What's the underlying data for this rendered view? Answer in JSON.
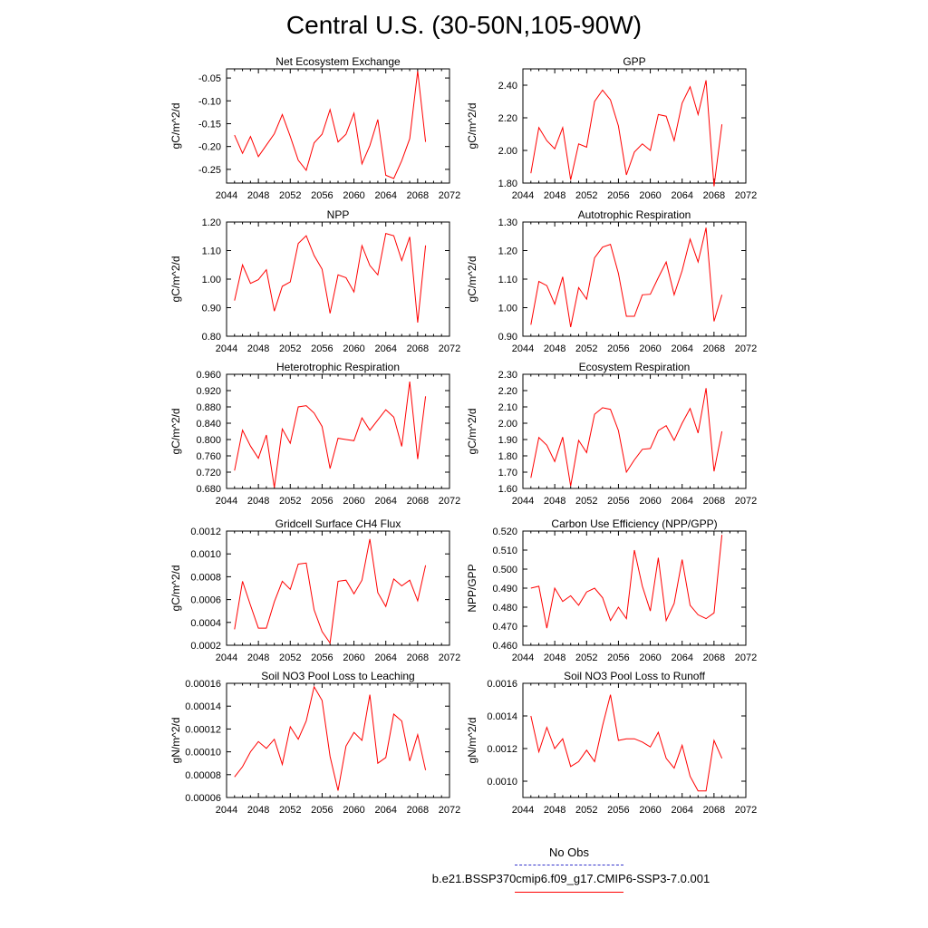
{
  "title": "Central U.S. (30-50N,105-90W)",
  "legend": {
    "obs_label": "No Obs",
    "obs_color": "#3333cc",
    "run_label": "b.e21.BSSP370cmip6.f09_g17.CMIP6-SSP3-7.0.001",
    "run_color": "#ff0000"
  },
  "chart_data": [
    {
      "type": "line",
      "title": "Net Ecosystem Exchange",
      "ylabel": "gC/m^2/d",
      "xlim": [
        2044,
        2072
      ],
      "xticks": [
        "2044",
        "2048",
        "2052",
        "2056",
        "2060",
        "2064",
        "2068",
        "2072"
      ],
      "ylim": [
        -0.28,
        -0.03
      ],
      "yticks": [
        "-0.05",
        "-0.10",
        "-0.15",
        "-0.20",
        "-0.25"
      ],
      "series": [
        {
          "x": [
            2045,
            2046,
            2047,
            2048,
            2049,
            2050,
            2051,
            2052,
            2053,
            2054,
            2055,
            2056,
            2057,
            2058,
            2059,
            2060,
            2061,
            2062,
            2063,
            2064,
            2065,
            2066,
            2067,
            2068,
            2069
          ],
          "values": [
            -0.175,
            -0.215,
            -0.178,
            -0.222,
            -0.197,
            -0.172,
            -0.13,
            -0.178,
            -0.23,
            -0.252,
            -0.192,
            -0.173,
            -0.119,
            -0.19,
            -0.173,
            -0.127,
            -0.238,
            -0.198,
            -0.141,
            -0.263,
            -0.27,
            -0.231,
            -0.183,
            -0.035,
            -0.19
          ]
        }
      ]
    },
    {
      "type": "line",
      "title": "GPP",
      "ylabel": "gC/m^2/d",
      "xlim": [
        2044,
        2072
      ],
      "xticks": [
        "2044",
        "2048",
        "2052",
        "2056",
        "2060",
        "2064",
        "2068",
        "2072"
      ],
      "ylim": [
        1.8,
        2.5
      ],
      "yticks": [
        "1.80",
        "2.00",
        "2.20",
        "2.40"
      ],
      "series": [
        {
          "x": [
            2045,
            2046,
            2047,
            2048,
            2049,
            2050,
            2051,
            2052,
            2053,
            2054,
            2055,
            2056,
            2057,
            2058,
            2059,
            2060,
            2061,
            2062,
            2063,
            2064,
            2065,
            2066,
            2067,
            2068,
            2069
          ],
          "values": [
            1.86,
            2.14,
            2.06,
            2.01,
            2.14,
            1.82,
            2.04,
            2.02,
            2.3,
            2.37,
            2.31,
            2.15,
            1.85,
            1.99,
            2.04,
            2.0,
            2.22,
            2.21,
            2.06,
            2.29,
            2.39,
            2.22,
            2.43,
            1.78,
            2.16
          ]
        }
      ]
    },
    {
      "type": "line",
      "title": "NPP",
      "ylabel": "gC/m^2/d",
      "xlim": [
        2044,
        2072
      ],
      "xticks": [
        "2044",
        "2048",
        "2052",
        "2056",
        "2060",
        "2064",
        "2068",
        "2072"
      ],
      "ylim": [
        0.8,
        1.2
      ],
      "yticks": [
        "0.80",
        "0.90",
        "1.00",
        "1.10",
        "1.20"
      ],
      "series": [
        {
          "x": [
            2045,
            2046,
            2047,
            2048,
            2049,
            2050,
            2051,
            2052,
            2053,
            2054,
            2055,
            2056,
            2057,
            2058,
            2059,
            2060,
            2061,
            2062,
            2063,
            2064,
            2065,
            2066,
            2067,
            2068,
            2069
          ],
          "values": [
            0.925,
            1.05,
            0.985,
            0.998,
            1.033,
            0.888,
            0.975,
            0.99,
            1.125,
            1.152,
            1.083,
            1.035,
            0.88,
            1.015,
            1.005,
            0.955,
            1.117,
            1.048,
            1.015,
            1.16,
            1.152,
            1.065,
            1.148,
            0.848,
            1.118
          ]
        }
      ]
    },
    {
      "type": "line",
      "title": "Autotrophic Respiration",
      "ylabel": "gC/m^2/d",
      "xlim": [
        2044,
        2072
      ],
      "xticks": [
        "2044",
        "2048",
        "2052",
        "2056",
        "2060",
        "2064",
        "2068",
        "2072"
      ],
      "ylim": [
        0.9,
        1.3
      ],
      "yticks": [
        "0.90",
        "1.00",
        "1.10",
        "1.20",
        "1.30"
      ],
      "series": [
        {
          "x": [
            2045,
            2046,
            2047,
            2048,
            2049,
            2050,
            2051,
            2052,
            2053,
            2054,
            2055,
            2056,
            2057,
            2058,
            2059,
            2060,
            2061,
            2062,
            2063,
            2064,
            2065,
            2066,
            2067,
            2068,
            2069
          ],
          "values": [
            0.94,
            1.092,
            1.077,
            1.012,
            1.108,
            0.932,
            1.07,
            1.03,
            1.175,
            1.212,
            1.222,
            1.12,
            0.97,
            0.97,
            1.045,
            1.047,
            1.105,
            1.16,
            1.045,
            1.13,
            1.24,
            1.16,
            1.28,
            0.952,
            1.045
          ]
        }
      ]
    },
    {
      "type": "line",
      "title": "Heterotrophic Respiration",
      "ylabel": "gC/m^2/d",
      "xlim": [
        2044,
        2072
      ],
      "xticks": [
        "2044",
        "2048",
        "2052",
        "2056",
        "2060",
        "2064",
        "2068",
        "2072"
      ],
      "ylim": [
        0.68,
        0.96
      ],
      "yticks": [
        "0.680",
        "0.720",
        "0.760",
        "0.800",
        "0.840",
        "0.880",
        "0.920",
        "0.960"
      ],
      "series": [
        {
          "x": [
            2045,
            2046,
            2047,
            2048,
            2049,
            2050,
            2051,
            2052,
            2053,
            2054,
            2055,
            2056,
            2057,
            2058,
            2059,
            2060,
            2061,
            2062,
            2063,
            2064,
            2065,
            2066,
            2067,
            2068,
            2069
          ],
          "values": [
            0.724,
            0.823,
            0.784,
            0.754,
            0.811,
            0.682,
            0.826,
            0.791,
            0.88,
            0.883,
            0.865,
            0.832,
            0.729,
            0.803,
            0.8,
            0.797,
            0.853,
            0.823,
            0.848,
            0.873,
            0.855,
            0.783,
            0.942,
            0.752,
            0.906
          ]
        }
      ]
    },
    {
      "type": "line",
      "title": "Ecosystem Respiration",
      "ylabel": "gC/m^2/d",
      "xlim": [
        2044,
        2072
      ],
      "xticks": [
        "2044",
        "2048",
        "2052",
        "2056",
        "2060",
        "2064",
        "2068",
        "2072"
      ],
      "ylim": [
        1.6,
        2.3
      ],
      "yticks": [
        "1.60",
        "1.70",
        "1.80",
        "1.90",
        "2.00",
        "2.10",
        "2.20",
        "2.30"
      ],
      "series": [
        {
          "x": [
            2045,
            2046,
            2047,
            2048,
            2049,
            2050,
            2051,
            2052,
            2053,
            2054,
            2055,
            2056,
            2057,
            2058,
            2059,
            2060,
            2061,
            2062,
            2063,
            2064,
            2065,
            2066,
            2067,
            2068,
            2069
          ],
          "values": [
            1.665,
            1.912,
            1.865,
            1.765,
            1.915,
            1.615,
            1.895,
            1.82,
            2.055,
            2.095,
            2.085,
            1.955,
            1.7,
            1.775,
            1.84,
            1.845,
            1.955,
            1.985,
            1.895,
            2.0,
            2.09,
            1.94,
            2.215,
            1.705,
            1.95
          ]
        }
      ]
    },
    {
      "type": "line",
      "title": "Gridcell Surface CH4 Flux",
      "ylabel": "gC/m^2/d",
      "xlim": [
        2044,
        2072
      ],
      "xticks": [
        "2044",
        "2048",
        "2052",
        "2056",
        "2060",
        "2064",
        "2068",
        "2072"
      ],
      "ylim": [
        0.0002,
        0.0012
      ],
      "yticks": [
        "0.0002",
        "0.0004",
        "0.0006",
        "0.0008",
        "0.0010",
        "0.0012"
      ],
      "series": [
        {
          "x": [
            2045,
            2046,
            2047,
            2048,
            2049,
            2050,
            2051,
            2052,
            2053,
            2054,
            2055,
            2056,
            2057,
            2058,
            2059,
            2060,
            2061,
            2062,
            2063,
            2064,
            2065,
            2066,
            2067,
            2068,
            2069
          ],
          "values": [
            0.00034,
            0.00076,
            0.00055,
            0.00035,
            0.00035,
            0.00058,
            0.00076,
            0.00069,
            0.00091,
            0.00092,
            0.00051,
            0.00032,
            0.00022,
            0.00076,
            0.00077,
            0.00065,
            0.00077,
            0.00113,
            0.00066,
            0.00054,
            0.00078,
            0.00072,
            0.00077,
            0.00059,
            0.0009
          ]
        }
      ]
    },
    {
      "type": "line",
      "title": "Carbon Use Efficiency (NPP/GPP)",
      "ylabel": "NPP/GPP",
      "xlim": [
        2044,
        2072
      ],
      "xticks": [
        "2044",
        "2048",
        "2052",
        "2056",
        "2060",
        "2064",
        "2068",
        "2072"
      ],
      "ylim": [
        0.46,
        0.52
      ],
      "yticks": [
        "0.460",
        "0.470",
        "0.480",
        "0.490",
        "0.500",
        "0.510",
        "0.520"
      ],
      "series": [
        {
          "x": [
            2045,
            2046,
            2047,
            2048,
            2049,
            2050,
            2051,
            2052,
            2053,
            2054,
            2055,
            2056,
            2057,
            2058,
            2059,
            2060,
            2061,
            2062,
            2063,
            2064,
            2065,
            2066,
            2067,
            2068,
            2069
          ],
          "values": [
            0.49,
            0.491,
            0.469,
            0.49,
            0.483,
            0.486,
            0.481,
            0.488,
            0.49,
            0.485,
            0.473,
            0.48,
            0.474,
            0.51,
            0.491,
            0.478,
            0.506,
            0.473,
            0.482,
            0.505,
            0.481,
            0.476,
            0.474,
            0.477,
            0.518
          ]
        }
      ]
    },
    {
      "type": "line",
      "title": "Soil NO3 Pool Loss to Leaching",
      "ylabel": "gN/m^2/d",
      "xlim": [
        2044,
        2072
      ],
      "xticks": [
        "2044",
        "2048",
        "2052",
        "2056",
        "2060",
        "2064",
        "2068",
        "2072"
      ],
      "ylim": [
        6e-05,
        0.00016
      ],
      "yticks": [
        "0.00006",
        "0.00008",
        "0.00010",
        "0.00012",
        "0.00014",
        "0.00016"
      ],
      "series": [
        {
          "x": [
            2045,
            2046,
            2047,
            2048,
            2049,
            2050,
            2051,
            2052,
            2053,
            2054,
            2055,
            2056,
            2057,
            2058,
            2059,
            2060,
            2061,
            2062,
            2063,
            2064,
            2065,
            2066,
            2067,
            2068,
            2069
          ],
          "values": [
            7.8e-05,
            8.7e-05,
            0.0001,
            0.000109,
            0.000103,
            0.000111,
            8.9e-05,
            0.000122,
            0.000111,
            0.000127,
            0.000157,
            0.000145,
            9.6e-05,
            6.6e-05,
            0.000105,
            0.000117,
            0.00011,
            0.00015,
            9e-05,
            9.5e-05,
            0.000133,
            0.000127,
            9.2e-05,
            0.000115,
            8.4e-05
          ]
        }
      ]
    },
    {
      "type": "line",
      "title": "Soil NO3 Pool Loss to Runoff",
      "ylabel": "gN/m^2/d",
      "xlim": [
        2044,
        2072
      ],
      "xticks": [
        "2044",
        "2048",
        "2052",
        "2056",
        "2060",
        "2064",
        "2068",
        "2072"
      ],
      "ylim": [
        0.0009,
        0.0016
      ],
      "yticks": [
        "0.0010",
        "0.0012",
        "0.0014",
        "0.0016"
      ],
      "series": [
        {
          "x": [
            2045,
            2046,
            2047,
            2048,
            2049,
            2050,
            2051,
            2052,
            2053,
            2054,
            2055,
            2056,
            2057,
            2058,
            2059,
            2060,
            2061,
            2062,
            2063,
            2064,
            2065,
            2066,
            2067,
            2068,
            2069
          ],
          "values": [
            0.0014,
            0.00118,
            0.00133,
            0.0012,
            0.00126,
            0.00109,
            0.00112,
            0.00119,
            0.00112,
            0.00134,
            0.00153,
            0.00125,
            0.00126,
            0.00126,
            0.00124,
            0.00121,
            0.0013,
            0.00114,
            0.00108,
            0.00122,
            0.00103,
            0.00094,
            0.00094,
            0.00125,
            0.00114
          ]
        }
      ]
    }
  ]
}
